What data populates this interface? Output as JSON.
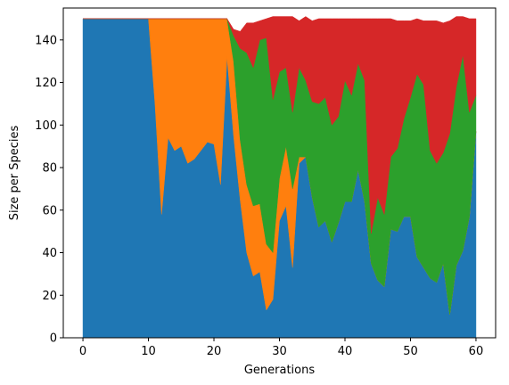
{
  "chart_data": {
    "type": "area",
    "stacked": true,
    "xlabel": "Generations",
    "ylabel": "Size per Species",
    "xlim": [
      -3,
      63
    ],
    "ylim": [
      0,
      155
    ],
    "xticks": [
      0,
      10,
      20,
      30,
      40,
      50,
      60
    ],
    "yticks": [
      0,
      20,
      40,
      60,
      80,
      100,
      120,
      140
    ],
    "grid": false,
    "x": [
      0,
      1,
      2,
      3,
      4,
      5,
      6,
      7,
      8,
      9,
      10,
      11,
      12,
      13,
      14,
      15,
      16,
      17,
      18,
      19,
      20,
      21,
      22,
      23,
      24,
      25,
      26,
      27,
      28,
      29,
      30,
      31,
      32,
      33,
      34,
      35,
      36,
      37,
      38,
      39,
      40,
      41,
      42,
      43,
      44,
      45,
      46,
      47,
      48,
      49,
      50,
      51,
      52,
      53,
      54,
      55,
      56,
      57,
      58,
      59,
      60
    ],
    "series": [
      {
        "color": "#1f77b4",
        "values": [
          150,
          150,
          150,
          150,
          150,
          150,
          150,
          150,
          150,
          150,
          150,
          110,
          58,
          94,
          88,
          90,
          82,
          84,
          88,
          92,
          91,
          72,
          132,
          95,
          65,
          40,
          29,
          31,
          13,
          18,
          55,
          62,
          33,
          82,
          85,
          66,
          52,
          55,
          45,
          54,
          64,
          64,
          79,
          64,
          35,
          27,
          24,
          51,
          50,
          57,
          57,
          38,
          33,
          28,
          26,
          35,
          11,
          34,
          41,
          57,
          97
        ]
      },
      {
        "color": "#ff7f0e",
        "values": [
          0,
          0,
          0,
          0,
          0,
          0,
          0,
          0,
          0,
          0,
          0,
          40,
          92,
          56,
          62,
          60,
          68,
          66,
          62,
          58,
          59,
          78,
          18,
          35,
          28,
          32,
          33,
          32,
          31,
          22,
          20,
          28,
          37,
          3,
          0,
          0,
          0,
          0,
          0,
          0,
          0,
          0,
          0,
          0,
          0,
          0,
          0,
          0,
          0,
          0,
          0,
          0,
          0,
          0,
          0,
          0,
          0,
          0,
          0,
          0,
          0
        ]
      },
      {
        "color": "#2ca02c",
        "values": [
          0,
          0,
          0,
          0,
          0,
          0,
          0,
          0,
          0,
          0,
          0,
          0,
          0,
          0,
          0,
          0,
          0,
          0,
          0,
          0,
          0,
          0,
          0,
          12,
          43,
          62,
          65,
          77,
          97,
          72,
          50,
          37,
          36,
          42,
          36,
          45,
          58,
          58,
          55,
          50,
          57,
          50,
          50,
          57,
          14,
          39,
          34,
          34,
          39,
          46,
          56,
          86,
          86,
          60,
          56,
          52,
          85,
          84,
          92,
          49,
          17
        ]
      },
      {
        "color": "#d62728",
        "values": [
          0,
          0,
          0,
          0,
          0,
          0,
          0,
          0,
          0,
          0,
          0,
          0,
          0,
          0,
          0,
          0,
          0,
          0,
          0,
          0,
          0,
          0,
          0,
          3,
          8,
          14,
          21,
          9,
          9,
          39,
          26,
          24,
          45,
          22,
          30,
          38,
          40,
          37,
          50,
          46,
          29,
          36,
          21,
          29,
          101,
          84,
          92,
          65,
          60,
          46,
          36,
          26,
          30,
          61,
          67,
          61,
          53,
          33,
          18,
          44,
          36
        ]
      }
    ]
  }
}
